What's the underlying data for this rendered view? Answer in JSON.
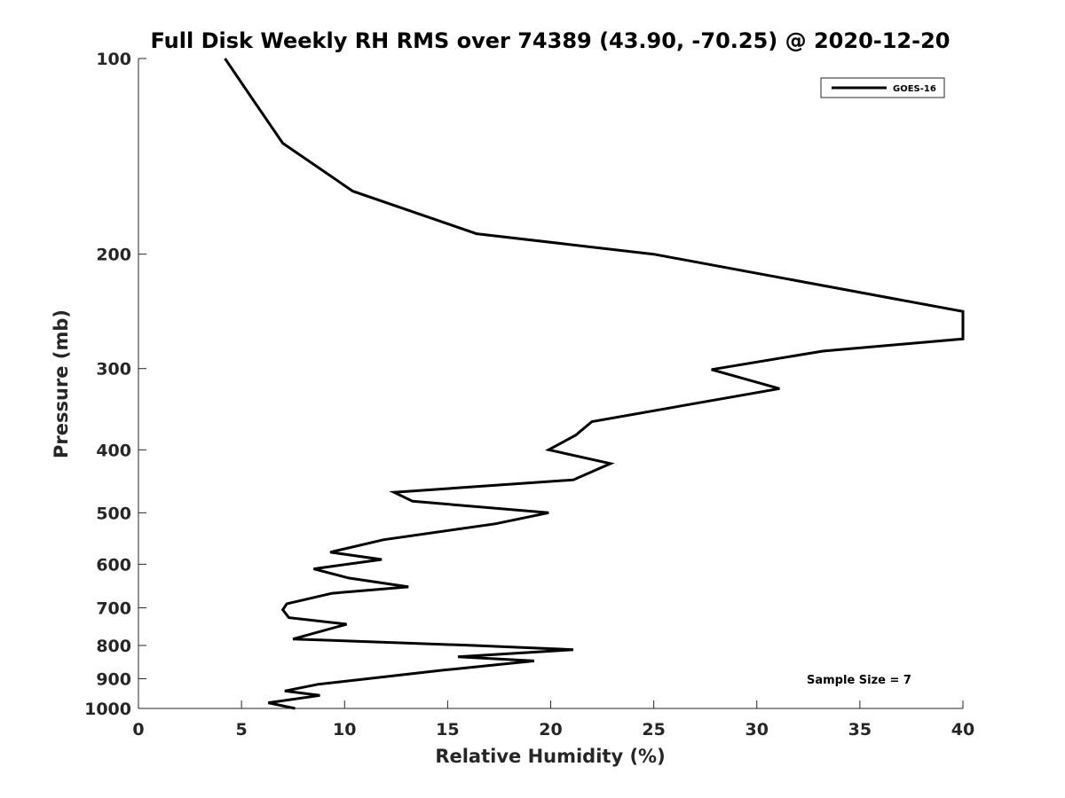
{
  "chart_data": {
    "type": "line",
    "title": "Full Disk Weekly RH RMS over 74389 (43.90, -70.25) @ 2020-12-20",
    "xlabel": "Relative Humidity (%)",
    "ylabel": "Pressure (mb)",
    "xlim": [
      0,
      40
    ],
    "ylim": [
      1000,
      100
    ],
    "y_scale": "log",
    "grid": false,
    "legend_position": "top-right",
    "x_ticks": [
      0,
      5,
      10,
      15,
      20,
      25,
      30,
      35,
      40
    ],
    "y_ticks": [
      100,
      200,
      300,
      400,
      500,
      600,
      700,
      800,
      900,
      1000
    ],
    "series": [
      {
        "name": "GOES-16",
        "color": "#000000",
        "points": [
          [
            4.2,
            100
          ],
          [
            5.5,
            115
          ],
          [
            7.0,
            135
          ],
          [
            10.4,
            160
          ],
          [
            16.4,
            186
          ],
          [
            25.0,
            200
          ],
          [
            40.0,
            245
          ],
          [
            40.0,
            270
          ],
          [
            33.2,
            282
          ],
          [
            27.8,
            301
          ],
          [
            31.1,
            322
          ],
          [
            22.0,
            362
          ],
          [
            21.2,
            380
          ],
          [
            19.9,
            400
          ],
          [
            22.9,
            420
          ],
          [
            21.1,
            445
          ],
          [
            12.4,
            465
          ],
          [
            13.3,
            480
          ],
          [
            19.9,
            500
          ],
          [
            17.3,
            520
          ],
          [
            11.9,
            550
          ],
          [
            9.3,
            575
          ],
          [
            11.8,
            590
          ],
          [
            8.5,
            610
          ],
          [
            10.2,
            630
          ],
          [
            13.1,
            650
          ],
          [
            9.4,
            665
          ],
          [
            7.2,
            690
          ],
          [
            7.0,
            705
          ],
          [
            7.3,
            725
          ],
          [
            10.1,
            742
          ],
          [
            7.5,
            782
          ],
          [
            16.3,
            800
          ],
          [
            21.1,
            812
          ],
          [
            15.5,
            833
          ],
          [
            19.2,
            845
          ],
          [
            14.8,
            873
          ],
          [
            8.7,
            918
          ],
          [
            7.1,
            940
          ],
          [
            8.8,
            955
          ],
          [
            6.3,
            980
          ],
          [
            7.6,
            1000
          ]
        ]
      }
    ],
    "annotation": "Sample Size = 7"
  }
}
